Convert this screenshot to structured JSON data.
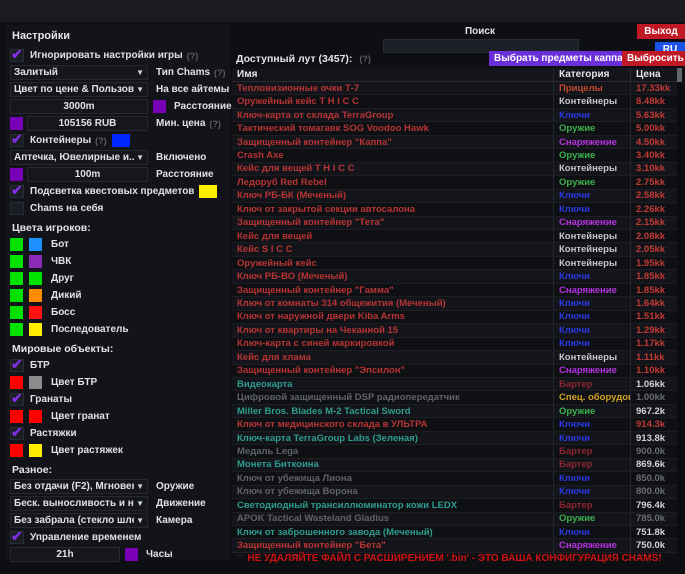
{
  "icons": {
    "dropdown": "▼",
    "check": "✔"
  },
  "colors": {
    "accent_purple": "#7d2ee0",
    "button_red": "#c01825",
    "button_blue": "#1b52e8",
    "button_purple": "#6a2fd8",
    "name_red": "#b63434",
    "name_teal": "#2e9d8f",
    "name_gray": "#5f6269",
    "price_red": "#c23a35",
    "price_white": "#cfd2d8",
    "price_gray": "#6a6d74",
    "cat_keys": "#2a39e0",
    "cat_gear": "#b632e0",
    "cat_weapon": "#3cb04d",
    "cat_containers": "#c4c7cd",
    "cat_scopes": "#c04a30",
    "cat_barter": "#8e2433",
    "cat_special": "#d2a226",
    "warning_red": "#cf1212"
  },
  "topbar": {
    "search_label": "Поиск",
    "search_value": "",
    "exit_button": "Выход",
    "lang_button": "RU"
  },
  "settings": {
    "title": "Настройки",
    "ignore_game_settings": {
      "label": "Игнорировать настройки игры",
      "hint": "(?)",
      "checked": true
    },
    "chams_type": {
      "value": "Залитый",
      "label": "Тип Chams",
      "hint": "(?)"
    },
    "color_mode": {
      "value": "Цвет по цене & Пользователь",
      "label": "На все айтемы"
    },
    "distance": {
      "value": "3000m",
      "label": "Расстояние",
      "swatch": "#7a00b8"
    },
    "min_price": {
      "value": "105156 RUB",
      "label": "Мин. цена",
      "hint": "(?)",
      "swatch": "#7a00b8"
    },
    "containers": {
      "label": "Контейнеры",
      "hint": "(?)",
      "checked": true,
      "swatch": "#0026ff"
    },
    "containers_filter": {
      "value": "Аптечка, Ювелирные и...",
      "label": "Включено"
    },
    "containers_distance": {
      "value": "100m",
      "label": "Расстояние",
      "swatch": "#7a00b8"
    },
    "quest_highlight": {
      "label": "Подсветка квестовых предметов",
      "checked": true,
      "swatch": "#ffee00"
    },
    "chams_self": {
      "label": "Chams на себя",
      "checked": false
    },
    "player_colors": {
      "title": "Цвета игроков:",
      "items": [
        {
          "label": "Бот",
          "visible": "#00e100",
          "color": "#1e90ff"
        },
        {
          "label": "ЧВК",
          "visible": "#00e100",
          "color": "#8a2bb8"
        },
        {
          "label": "Друг",
          "visible": "#00e100",
          "color": "#00e100"
        },
        {
          "label": "Дикий",
          "visible": "#00e100",
          "color": "#ff8c00"
        },
        {
          "label": "Босс",
          "visible": "#00e100",
          "color": "#ff1111"
        },
        {
          "label": "Последователь",
          "visible": "#00e100",
          "color": "#ffee00"
        }
      ]
    },
    "world_objects": {
      "title": "Мировые объекты:",
      "btr": {
        "label": "БТР",
        "checked": true
      },
      "btr_color": {
        "label": "Цвет БТР",
        "a": "#ff0000",
        "b": "#8c8c8c"
      },
      "grenades": {
        "label": "Гранаты",
        "checked": true
      },
      "grenade_color": {
        "label": "Цвет гранат",
        "a": "#ff0000",
        "b": "#ff0000"
      },
      "tripwires": {
        "label": "Растяжки",
        "checked": true
      },
      "tripwire_color": {
        "label": "Цвет растяжек",
        "a": "#ff0000",
        "b": "#ffee00"
      }
    },
    "misc": {
      "title": "Разное:",
      "weapon": {
        "value": "Без отдачи (F2), Мгновенное п",
        "label": "Оружие"
      },
      "movement": {
        "value": "Беск. выносливость и нет уста",
        "label": "Движение"
      },
      "camera": {
        "value": "Без забрала (стекло шлема)",
        "label": "Камера"
      },
      "time_control": {
        "label": "Управление временем",
        "checked": true
      },
      "hours": {
        "value": "21h",
        "label": "Часы",
        "swatch": "#7a00b8"
      }
    }
  },
  "loot": {
    "title": "Доступный лут (3457):",
    "hint": "(?)",
    "select_kappa_button": "Выбрать предметы каппа",
    "discard_all_button": "Выбросить все",
    "columns": [
      "Имя",
      "Категория",
      "Цена"
    ],
    "rows": [
      {
        "name": "Тепловизионные очки Т-7",
        "cat": "Прицелы",
        "price": "17.33kk",
        "nc": "red",
        "cc": "scopes",
        "pc": "red"
      },
      {
        "name": "Оружейный кейс T H I C C",
        "cat": "Контейнеры",
        "price": "8.48kk",
        "nc": "red",
        "cc": "containers",
        "pc": "red"
      },
      {
        "name": "Ключ-карта от склада TerraGroup",
        "cat": "Ключи",
        "price": "5.63kk",
        "nc": "red",
        "cc": "keys",
        "pc": "red"
      },
      {
        "name": "Тактический томагавк SOG Voodoo Hawk",
        "cat": "Оружие",
        "price": "5.00kk",
        "nc": "red",
        "cc": "weapon",
        "pc": "red"
      },
      {
        "name": "Защищенный контейнер \"Каппа\"",
        "cat": "Снаряжение",
        "price": "4.50kk",
        "nc": "red",
        "cc": "gear",
        "pc": "red"
      },
      {
        "name": "Crash Axe",
        "cat": "Оружие",
        "price": "3.40kk",
        "nc": "red",
        "cc": "weapon",
        "pc": "red"
      },
      {
        "name": "Кейс для вещей T H I C C",
        "cat": "Контейнеры",
        "price": "3.10kk",
        "nc": "red",
        "cc": "containers",
        "pc": "red"
      },
      {
        "name": "Ледоруб Red Rebel",
        "cat": "Оружие",
        "price": "2.75kk",
        "nc": "red",
        "cc": "weapon",
        "pc": "red"
      },
      {
        "name": "Ключ РБ-БК (Меченый)",
        "cat": "Ключи",
        "price": "2.58kk",
        "nc": "red",
        "cc": "keys",
        "pc": "red"
      },
      {
        "name": "Ключ от закрытой секции автосалона",
        "cat": "Ключи",
        "price": "2.26kk",
        "nc": "red",
        "cc": "keys",
        "pc": "red"
      },
      {
        "name": "Защищенный контейнер \"Тета\"",
        "cat": "Снаряжение",
        "price": "2.15kk",
        "nc": "red",
        "cc": "gear",
        "pc": "red"
      },
      {
        "name": "Кейс для вещей",
        "cat": "Контейнеры",
        "price": "2.08kk",
        "nc": "red",
        "cc": "containers",
        "pc": "red"
      },
      {
        "name": "Кейс S I C C",
        "cat": "Контейнеры",
        "price": "2.05kk",
        "nc": "red",
        "cc": "containers",
        "pc": "red"
      },
      {
        "name": "Оружейный кейс",
        "cat": "Контейнеры",
        "price": "1.95kk",
        "nc": "red",
        "cc": "containers",
        "pc": "red"
      },
      {
        "name": "Ключ РБ-ВО (Меченый)",
        "cat": "Ключи",
        "price": "1.85kk",
        "nc": "red",
        "cc": "keys",
        "pc": "red"
      },
      {
        "name": "Защищенный контейнер \"Гамма\"",
        "cat": "Снаряжение",
        "price": "1.85kk",
        "nc": "red",
        "cc": "gear",
        "pc": "red"
      },
      {
        "name": "Ключ от комнаты 314 общежития (Меченый)",
        "cat": "Ключи",
        "price": "1.64kk",
        "nc": "red",
        "cc": "keys",
        "pc": "red"
      },
      {
        "name": "Ключ от наружной двери Kiba Arms",
        "cat": "Ключи",
        "price": "1.51kk",
        "nc": "red",
        "cc": "keys",
        "pc": "red"
      },
      {
        "name": "Ключ от квартиры на Чеканной 15",
        "cat": "Ключи",
        "price": "1.29kk",
        "nc": "red",
        "cc": "keys",
        "pc": "red"
      },
      {
        "name": "Ключ-карта с синей маркировкой",
        "cat": "Ключи",
        "price": "1.17kk",
        "nc": "red",
        "cc": "keys",
        "pc": "red"
      },
      {
        "name": "Кейс для хлама",
        "cat": "Контейнеры",
        "price": "1.11kk",
        "nc": "red",
        "cc": "containers",
        "pc": "red"
      },
      {
        "name": "Защищенный контейнер \"Эпсилон\"",
        "cat": "Снаряжение",
        "price": "1.10kk",
        "nc": "red",
        "cc": "gear",
        "pc": "red"
      },
      {
        "name": "Видеокарта",
        "cat": "Бартер",
        "price": "1.06kk",
        "nc": "teal",
        "cc": "barter",
        "pc": "white"
      },
      {
        "name": "Цифровой защищенный DSP радиопередатчик",
        "cat": "Спец. оборудование",
        "price": "1.00kk",
        "nc": "gray",
        "cc": "special",
        "pc": "gray"
      },
      {
        "name": "Miller Bros. Blades M-2 Tactical Sword",
        "cat": "Оружие",
        "price": "967.2k",
        "nc": "teal",
        "cc": "weapon",
        "pc": "white"
      },
      {
        "name": "Ключ от медицинского склада в УЛЬТРА",
        "cat": "Ключи",
        "price": "914.3k",
        "nc": "red",
        "cc": "keys",
        "pc": "red"
      },
      {
        "name": "Ключ-карта TerraGroup Labs (Зеленая)",
        "cat": "Ключи",
        "price": "913.8k",
        "nc": "teal",
        "cc": "keys",
        "pc": "white"
      },
      {
        "name": "Медаль Lega",
        "cat": "Бартер",
        "price": "900.0k",
        "nc": "gray",
        "cc": "barter",
        "pc": "gray"
      },
      {
        "name": "Монета Биткоина",
        "cat": "Бартер",
        "price": "869.6k",
        "nc": "teal",
        "cc": "barter",
        "pc": "white"
      },
      {
        "name": "Ключ от убежища Лиона",
        "cat": "Ключи",
        "price": "850.0k",
        "nc": "gray",
        "cc": "keys",
        "pc": "gray"
      },
      {
        "name": "Ключ от убежища Ворона",
        "cat": "Ключи",
        "price": "800.0k",
        "nc": "gray",
        "cc": "keys",
        "pc": "gray"
      },
      {
        "name": "Светодиодный трансиллюминатор кожи LEDX",
        "cat": "Бартер",
        "price": "796.4k",
        "nc": "teal",
        "cc": "barter",
        "pc": "white"
      },
      {
        "name": "APOK Tactical Wasteland Gladius",
        "cat": "Оружие",
        "price": "785.0k",
        "nc": "gray",
        "cc": "weapon",
        "pc": "gray"
      },
      {
        "name": "Ключ от заброшенного завода (Меченый)",
        "cat": "Ключи",
        "price": "751.8k",
        "nc": "teal",
        "cc": "keys",
        "pc": "white"
      },
      {
        "name": "Защищенный контейнер \"Бета\"",
        "cat": "Снаряжение",
        "price": "750.0k",
        "nc": "red",
        "cc": "gear",
        "pc": "white"
      },
      {
        "name": "Ключ-карта TerraGroup Labs (Синяя)",
        "cat": "Ключи",
        "price": "750.0k",
        "nc": "gray",
        "cc": "keys",
        "pc": "gray"
      }
    ]
  },
  "footer": {
    "warning": "НЕ УДАЛЯЙТЕ ФАЙЛ С РАСШИРЕНИЕМ '.bin'  - ЭТО ВАША КОНФИГУРАЦИЯ CHAMS!"
  }
}
